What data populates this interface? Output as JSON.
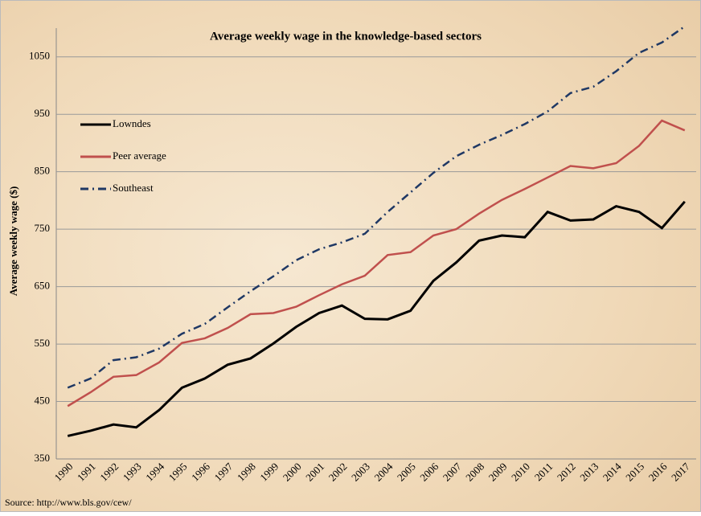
{
  "chart_data": {
    "type": "line",
    "title": "Average weekly wage in the knowledge-based sectors",
    "y_label": "Average weekly wage ($)",
    "source": "Source: http://www.bls.gov/cew/",
    "categories": [
      "1990",
      "1991",
      "1992",
      "1993",
      "1994",
      "1995",
      "1996",
      "1997",
      "1998",
      "1999",
      "2000",
      "2001",
      "2002",
      "2003",
      "2004",
      "2005",
      "2006",
      "2007",
      "2008",
      "2009",
      "2010",
      "2011",
      "2012",
      "2013",
      "2014",
      "2015",
      "2016",
      "2017"
    ],
    "series": [
      {
        "name": "Lowndes",
        "color": "#000000",
        "dash": "solid",
        "values": [
          390,
          399,
          410,
          405,
          435,
          474,
          490,
          514,
          525,
          551,
          580,
          604,
          617,
          594,
          593,
          608,
          660,
          692,
          730,
          739,
          736,
          780,
          765,
          767,
          790,
          780,
          752,
          798
        ]
      },
      {
        "name": "Peer average",
        "color": "#c0504d",
        "dash": "solid",
        "values": [
          442,
          466,
          493,
          496,
          518,
          552,
          560,
          578,
          602,
          604,
          615,
          635,
          654,
          669,
          705,
          710,
          739,
          750,
          777,
          801,
          820,
          840,
          860,
          856,
          865,
          895,
          939,
          922
        ]
      },
      {
        "name": "Southeast",
        "color": "#1f3864",
        "dash": "dashdot",
        "values": [
          474,
          490,
          522,
          527,
          542,
          568,
          585,
          614,
          642,
          668,
          696,
          715,
          727,
          742,
          780,
          814,
          848,
          877,
          897,
          914,
          933,
          955,
          987,
          998,
          1025,
          1057,
          1075,
          1103
        ]
      }
    ],
    "ylim": [
      350,
      1100
    ],
    "yticks": [
      350,
      450,
      550,
      650,
      750,
      850,
      950,
      1050
    ],
    "grid": true,
    "legend": "upper-left"
  }
}
